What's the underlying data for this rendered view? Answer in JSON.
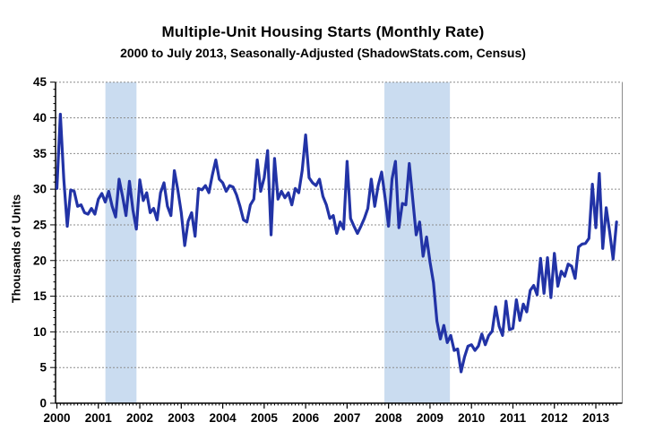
{
  "chart_data": {
    "type": "line",
    "title": "Multiple-Unit Housing Starts (Monthly Rate)",
    "subtitle": "2000 to July 2013, Seasonally-Adjusted (ShadowStats.com, Census)",
    "ylabel": "Thousands of Units",
    "xlabel": "",
    "ylim": [
      0,
      45
    ],
    "ytick_step": 5,
    "ytick_labels": [
      "0",
      "5",
      "10",
      "15",
      "20",
      "25",
      "30",
      "35",
      "40",
      "45"
    ],
    "xlim": [
      2000,
      2013.62
    ],
    "x_tick_years": [
      2000,
      2001,
      2002,
      2003,
      2004,
      2005,
      2006,
      2007,
      2008,
      2009,
      2010,
      2011,
      2012,
      2013
    ],
    "grid": "horizontal dashed gray",
    "legend": "none",
    "line_color": "#2233a6",
    "recession_band_color": "#cadcf0",
    "recession_bands": [
      {
        "label": "2001 recession",
        "from_year": 2001.17,
        "to_year": 2001.92
      },
      {
        "label": "2007-2009 recession",
        "from_year": 2007.9,
        "to_year": 2009.48
      }
    ],
    "series": [
      {
        "name": "Multiple-unit housing starts, thousands of units per month",
        "frequency": "monthly",
        "start": "2000-01",
        "end": "2013-07",
        "values": [
          30.1,
          40.5,
          31.4,
          24.8,
          29.9,
          29.7,
          27.6,
          27.8,
          26.7,
          26.5,
          27.3,
          26.5,
          28.6,
          29.4,
          28.2,
          29.7,
          27.6,
          26.1,
          31.4,
          29.0,
          26.3,
          31.1,
          27.1,
          24.4,
          31.3,
          28.4,
          29.5,
          26.7,
          27.3,
          25.7,
          29.5,
          30.9,
          27.6,
          26.3,
          32.6,
          29.9,
          26.7,
          22.1,
          25.5,
          26.7,
          23.4,
          30.1,
          29.9,
          30.5,
          29.5,
          32.0,
          34.1,
          31.4,
          30.9,
          29.7,
          30.5,
          30.3,
          29.2,
          27.6,
          25.7,
          25.4,
          27.8,
          28.6,
          34.1,
          29.7,
          31.6,
          35.4,
          23.6,
          34.3,
          28.6,
          29.7,
          28.8,
          29.5,
          27.8,
          30.1,
          29.5,
          32.6,
          37.6,
          31.6,
          30.9,
          30.5,
          31.4,
          29.0,
          27.8,
          25.9,
          26.3,
          23.8,
          25.4,
          24.4,
          33.9,
          25.9,
          24.8,
          23.8,
          24.8,
          25.9,
          27.3,
          31.4,
          27.6,
          30.5,
          32.4,
          28.8,
          24.8,
          31.4,
          33.9,
          24.6,
          28.0,
          27.8,
          33.6,
          28.6,
          23.6,
          25.4,
          20.6,
          23.3,
          19.8,
          16.9,
          11.5,
          9.0,
          10.9,
          8.5,
          9.5,
          7.4,
          7.6,
          4.4,
          6.5,
          8.0,
          8.2,
          7.4,
          8.0,
          9.7,
          8.2,
          9.5,
          10.1,
          13.5,
          10.8,
          9.5,
          14.3,
          10.3,
          10.5,
          14.5,
          11.6,
          13.9,
          12.8,
          15.8,
          16.5,
          15.2,
          20.3,
          15.4,
          20.4,
          14.8,
          21.0,
          16.4,
          18.5,
          17.8,
          19.5,
          19.2,
          17.5,
          21.9,
          22.3,
          22.4,
          23.1,
          30.7,
          24.6,
          32.2,
          21.7,
          27.4,
          24.0,
          20.2,
          25.4
        ]
      }
    ]
  }
}
